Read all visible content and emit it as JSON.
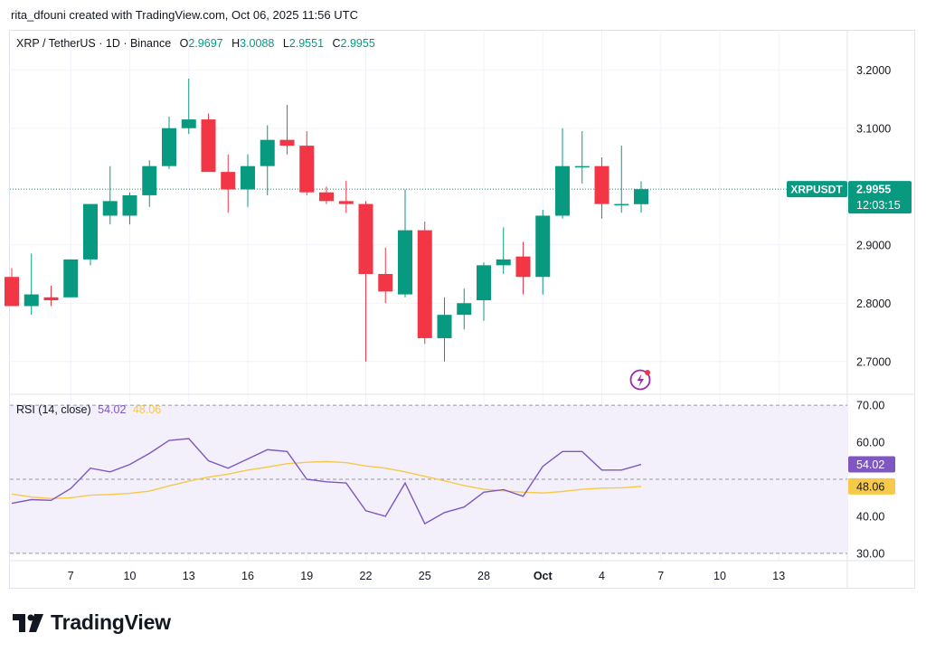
{
  "header": {
    "attribution": "rita_dfouni created with TradingView.com, Oct 06, 2025 11:56 UTC"
  },
  "legend": {
    "title": "XRP / TetherUS · 1D · Binance",
    "o_label": "O",
    "o_value": "2.9697",
    "h_label": "H",
    "h_value": "3.0088",
    "l_label": "L",
    "l_value": "2.9551",
    "c_label": "C",
    "c_value": "2.9955"
  },
  "rsi_legend": {
    "title": "RSI (14, close)",
    "rsi_value": "54.02",
    "ma_value": "48.06"
  },
  "price_badge": {
    "symbol": "XRPUSDT",
    "price": "2.9955",
    "countdown": "12:03:15"
  },
  "footer": {
    "brand": "TradingView"
  },
  "colors": {
    "up": "#089981",
    "down": "#f23645",
    "rsi": "#7e57c2",
    "rsi_ma": "#f7c948",
    "rsi_band": "#f3f0fb",
    "grid": "#f0f3fa"
  },
  "icons": {
    "flash": "flash-icon",
    "logo": "tradingview-logo-icon"
  },
  "chart_data": [
    {
      "type": "candlestick",
      "title": "XRP / TetherUS · 1D · Binance",
      "x": [
        "Sep 4",
        "Sep 5",
        "Sep 6",
        "Sep 7",
        "Sep 8",
        "Sep 9",
        "Sep 10",
        "Sep 11",
        "Sep 12",
        "Sep 13",
        "Sep 14",
        "Sep 15",
        "Sep 16",
        "Sep 17",
        "Sep 18",
        "Sep 19",
        "Sep 20",
        "Sep 21",
        "Sep 22",
        "Sep 23",
        "Sep 24",
        "Sep 25",
        "Sep 26",
        "Sep 27",
        "Sep 28",
        "Sep 29",
        "Sep 30",
        "Oct 1",
        "Oct 2",
        "Oct 3",
        "Oct 4",
        "Oct 5",
        "Oct 6"
      ],
      "ohlc": [
        [
          2.845,
          2.86,
          2.795,
          2.795
        ],
        [
          2.795,
          2.885,
          2.78,
          2.815
        ],
        [
          2.81,
          2.83,
          2.795,
          2.805
        ],
        [
          2.81,
          2.875,
          2.81,
          2.875
        ],
        [
          2.875,
          2.97,
          2.865,
          2.97
        ],
        [
          2.95,
          3.035,
          2.935,
          2.975
        ],
        [
          2.95,
          2.99,
          2.935,
          2.985
        ],
        [
          2.985,
          3.045,
          2.965,
          3.035
        ],
        [
          3.035,
          3.12,
          3.03,
          3.1
        ],
        [
          3.1,
          3.185,
          3.09,
          3.115
        ],
        [
          3.115,
          3.125,
          3.025,
          3.025
        ],
        [
          3.025,
          3.055,
          2.955,
          2.995
        ],
        [
          2.995,
          3.055,
          2.965,
          3.035
        ],
        [
          3.035,
          3.105,
          2.985,
          3.08
        ],
        [
          3.08,
          3.14,
          3.055,
          3.07
        ],
        [
          3.07,
          3.095,
          2.985,
          2.99
        ],
        [
          2.99,
          3.0,
          2.97,
          2.975
        ],
        [
          2.975,
          3.01,
          2.955,
          2.97
        ],
        [
          2.97,
          2.975,
          2.7,
          2.85
        ],
        [
          2.85,
          2.895,
          2.8,
          2.82
        ],
        [
          2.815,
          2.995,
          2.81,
          2.925
        ],
        [
          2.925,
          2.94,
          2.73,
          2.74
        ],
        [
          2.74,
          2.81,
          2.7,
          2.78
        ],
        [
          2.78,
          2.825,
          2.755,
          2.8
        ],
        [
          2.805,
          2.87,
          2.77,
          2.865
        ],
        [
          2.865,
          2.93,
          2.85,
          2.875
        ],
        [
          2.88,
          2.905,
          2.815,
          2.845
        ],
        [
          2.845,
          2.96,
          2.815,
          2.95
        ],
        [
          2.95,
          3.1,
          2.945,
          3.035
        ],
        [
          3.035,
          3.095,
          3.005,
          3.035
        ],
        [
          3.035,
          3.05,
          2.945,
          2.97
        ],
        [
          2.97,
          3.07,
          2.955,
          2.97
        ],
        [
          2.9697,
          3.0088,
          2.9551,
          2.9955
        ]
      ],
      "ylim": [
        2.65,
        3.25
      ],
      "y_ticks": [
        "2.7000",
        "2.8000",
        "2.9000",
        "3.1000",
        "3.2000"
      ],
      "last_price": 2.9955
    },
    {
      "type": "line",
      "title": "RSI (14, close)",
      "x": [
        "Sep 4",
        "Sep 5",
        "Sep 6",
        "Sep 7",
        "Sep 8",
        "Sep 9",
        "Sep 10",
        "Sep 11",
        "Sep 12",
        "Sep 13",
        "Sep 14",
        "Sep 15",
        "Sep 16",
        "Sep 17",
        "Sep 18",
        "Sep 19",
        "Sep 20",
        "Sep 21",
        "Sep 22",
        "Sep 23",
        "Sep 24",
        "Sep 25",
        "Sep 26",
        "Sep 27",
        "Sep 28",
        "Sep 29",
        "Sep 30",
        "Oct 1",
        "Oct 2",
        "Oct 3",
        "Oct 4",
        "Oct 5",
        "Oct 6"
      ],
      "series": [
        {
          "name": "RSI",
          "values": [
            43.5,
            44.5,
            44.3,
            47.5,
            53,
            52,
            54,
            57,
            60.5,
            61,
            55,
            53,
            55.5,
            58,
            57.5,
            50,
            49.3,
            49,
            41.5,
            40,
            49,
            38,
            41,
            42.5,
            46.5,
            47.2,
            45.4,
            53.5,
            57.5,
            57.5,
            52.5,
            52.5,
            54.02
          ]
        },
        {
          "name": "MA",
          "values": [
            46,
            45.2,
            44.8,
            45,
            45.7,
            45.9,
            46.2,
            46.8,
            48.2,
            49.5,
            50.6,
            51.4,
            52.5,
            53.3,
            54.2,
            54.6,
            54.8,
            54.5,
            53.6,
            53,
            52,
            50.8,
            49.6,
            48.3,
            47.3,
            46.9,
            46.5,
            46.3,
            46.7,
            47.3,
            47.6,
            47.7,
            48.06
          ]
        }
      ],
      "ylim": [
        28,
        72
      ],
      "y_ticks": [
        "30.00",
        "40.00",
        "60.00",
        "70.00"
      ],
      "bands": [
        30,
        50,
        70
      ]
    }
  ],
  "time_axis": {
    "labels": [
      "7",
      "10",
      "13",
      "16",
      "19",
      "22",
      "25",
      "28",
      "Oct",
      "4",
      "7",
      "10",
      "13"
    ],
    "day_index": [
      3,
      6,
      9,
      12,
      15,
      18,
      21,
      24,
      27,
      30,
      33,
      36,
      39
    ]
  }
}
